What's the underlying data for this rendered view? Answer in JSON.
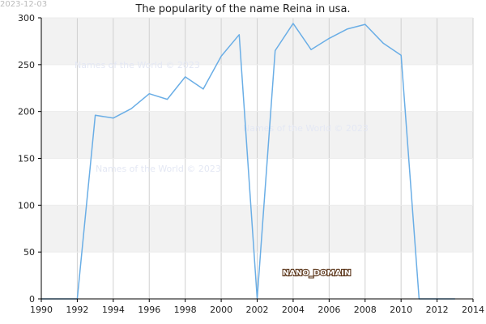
{
  "date_stamp": "2023-12-03",
  "watermark": "Names of the World © 2023",
  "brand": "NANO_DOMAIN",
  "colors": {
    "line": "#6aaee6",
    "band": "#f2f2f2",
    "grid": "#d0d0d0",
    "axis": "#000000"
  },
  "chart_data": {
    "type": "line",
    "title": "The popularity of the name Reina in usa.",
    "xlabel": "",
    "ylabel": "",
    "xlim": [
      1990,
      2014
    ],
    "ylim": [
      0,
      300
    ],
    "x_ticks": [
      1990,
      1992,
      1994,
      1996,
      1998,
      2000,
      2002,
      2004,
      2006,
      2008,
      2010,
      2012,
      2014
    ],
    "y_ticks": [
      0,
      50,
      100,
      150,
      200,
      250,
      300
    ],
    "grid": true,
    "legend": "none",
    "series": [
      {
        "x": [
          1990,
          1991,
          1992,
          1993,
          1994,
          1995,
          1996,
          1997,
          1998,
          1999,
          2000,
          2001,
          2002,
          2003,
          2004,
          2005,
          2006,
          2007,
          2008,
          2009,
          2010,
          2011,
          2012,
          2013
        ],
        "values": [
          0,
          0,
          0,
          196,
          193,
          203,
          219,
          213,
          237,
          224,
          259,
          282,
          0,
          265,
          294,
          266,
          278,
          288,
          293,
          273,
          260,
          0,
          0,
          0
        ]
      }
    ]
  }
}
